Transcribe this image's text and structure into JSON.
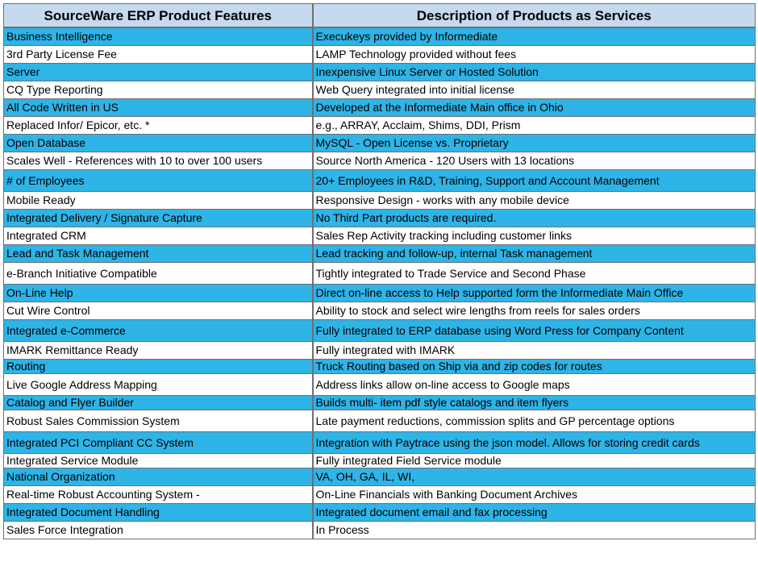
{
  "colors": {
    "header_bg": "#c5d9ef",
    "blue_row": "#2eb4e7",
    "white_row": "#ffffff"
  },
  "header": {
    "col1": "SourceWare ERP Product Features",
    "col2": "Description of Products as Services"
  },
  "rows": [
    {
      "feature": "Business Intelligence",
      "description": "Execukeys provided by Informediate",
      "shade": "blue"
    },
    {
      "feature": "3rd Party License Fee",
      "description": "LAMP Technology provided without fees",
      "shade": "white"
    },
    {
      "feature": "Server",
      "description": "Inexpensive Linux Server  or Hosted Solution",
      "shade": "blue"
    },
    {
      "feature": "CQ Type Reporting",
      "description": "Web Query integrated into initial license",
      "shade": "white"
    },
    {
      "feature": "All Code Written in US",
      "description": "Developed at the Informediate Main office in Ohio",
      "shade": "blue"
    },
    {
      "feature": "Replaced Infor/ Epicor, etc. *",
      "description": "e.g., ARRAY, Acclaim, Shims, DDI, Prism",
      "shade": "white"
    },
    {
      "feature": "Open Database",
      "description": "MySQL - Open License vs. Proprietary",
      "shade": "blue"
    },
    {
      "feature": "Scales Well - References with 10 to over 100 users",
      "description": "Source North America - 120 Users with 13 locations",
      "shade": "white"
    },
    {
      "feature": "# of Employees",
      "description": "20+ Employees in R&D, Training, Support and Account Management",
      "shade": "blue"
    },
    {
      "feature": "Mobile Ready",
      "description": "Responsive Design -  works with any mobile device",
      "shade": "white"
    },
    {
      "feature": "Integrated Delivery / Signature Capture",
      "description": "No Third Part products are required.",
      "shade": "blue"
    },
    {
      "feature": "Integrated CRM",
      "description": "Sales Rep Activity tracking including customer links",
      "shade": "white"
    },
    {
      "feature": "Lead and Task Management",
      "description": "Lead tracking and follow-up, internal Task management",
      "shade": "blue"
    },
    {
      "feature": "e-Branch Initiative Compatible",
      "description": "Tightly integrated to Trade Service and Second Phase",
      "shade": "white"
    },
    {
      "feature": "On-Line Help",
      "description": "Direct on-line access to Help supported form the Informediate Main Office",
      "shade": "blue"
    },
    {
      "feature": "Cut Wire Control",
      "description": "Ability to stock and select wire lengths from reels for sales orders",
      "shade": "white"
    },
    {
      "feature": "Integrated e-Commerce",
      "description": "Fully integrated to ERP database using Word Press for Company Content",
      "shade": "blue"
    },
    {
      "feature": "IMARK Remittance Ready",
      "description": "Fully integrated with IMARK",
      "shade": "white"
    },
    {
      "feature": "Routing",
      "description": "Truck Routing based on Ship via and zip codes for routes",
      "shade": "blue"
    },
    {
      "feature": "Live Google Address Mapping",
      "description": "Address links allow on-line access to Google maps",
      "shade": "white"
    },
    {
      "feature": "Catalog and Flyer Builder",
      "description": "Builds multi- item pdf style catalogs and item flyers",
      "shade": "blue"
    },
    {
      "feature": "Robust Sales Commission System",
      "description": "Late payment reductions, commission splits and GP percentage options",
      "shade": "white"
    },
    {
      "feature": "Integrated PCI Compliant CC System",
      "description": "Integration with Paytrace using the json model.  Allows for storing credit cards",
      "shade": "blue"
    },
    {
      "feature": "Integrated Service Module",
      "description": "Fully integrated Field Service module",
      "shade": "white"
    },
    {
      "feature": "National Organization",
      "description": "VA, OH, GA, IL, WI,",
      "shade": "blue"
    },
    {
      "feature": "Real-time Robust Accounting System -",
      "description": "On-Line Financials with Banking Document Archives",
      "shade": "white"
    },
    {
      "feature": "Integrated Document Handling",
      "description": "Integrated document email and fax processing",
      "shade": "blue"
    },
    {
      "feature": "Sales Force Integration",
      "description": "In Process",
      "shade": "white"
    }
  ]
}
